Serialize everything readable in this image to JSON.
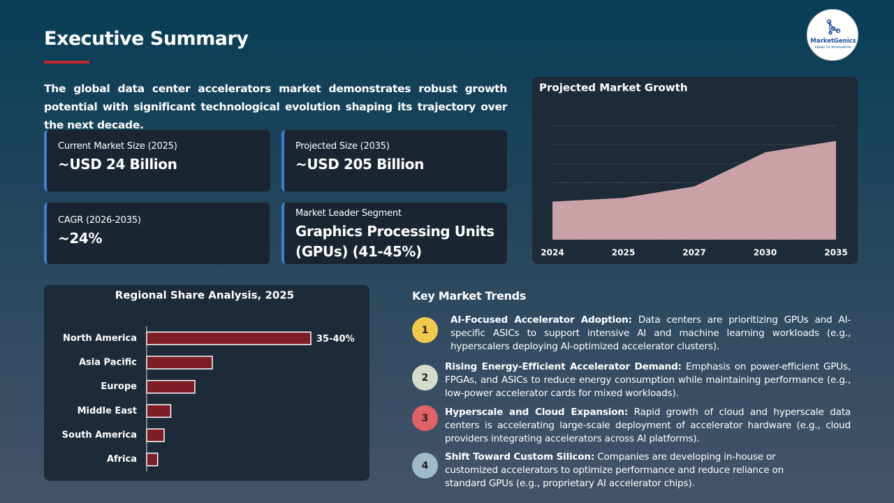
{
  "header": {
    "title": "Executive Summary",
    "logo_name": "MarketGenics",
    "logo_tagline": "Ideas to Innovation"
  },
  "intro": "The global data center accelerators market demonstrates robust growth potential with significant technological evolution shaping its trajectory over the next decade.",
  "metrics": [
    {
      "label": "Current Market Size (2025)",
      "value": "~USD 24 Billion"
    },
    {
      "label": "Projected Size (2035)",
      "value": "~USD 205 Billion"
    },
    {
      "label": "CAGR (2026-2035)",
      "value": "~24%"
    },
    {
      "label": "Market Leader Segment",
      "value": "Graphics Processing Units (GPUs) (41-45%)"
    }
  ],
  "chart_data": [
    {
      "type": "area",
      "title": "Projected Market Growth",
      "categories": [
        "2024",
        "2025",
        "2027",
        "2030",
        "2035"
      ],
      "values": [
        2.0,
        2.2,
        2.8,
        4.6,
        5.2
      ],
      "color": "#c9a1a6",
      "ylim": [
        0,
        6
      ],
      "yticks": [
        0,
        1,
        2,
        3,
        4,
        5,
        6
      ],
      "grid": true
    },
    {
      "type": "bar",
      "orientation": "horizontal",
      "title": "Regional Share Analysis, 2025",
      "categories": [
        "North America",
        "Asia Pacific",
        "Europe",
        "Middle East",
        "South America",
        "Africa"
      ],
      "values": [
        37.5,
        15,
        11,
        5.5,
        4,
        2.5
      ],
      "value_labels": [
        "35-40%",
        null,
        null,
        null,
        null,
        null
      ],
      "color": "#7d1d26",
      "xlim": [
        0,
        45
      ]
    }
  ],
  "trends": {
    "title": "Key Market Trends",
    "items": [
      {
        "number": "1",
        "heading": "AI-Focused Accelerator Adoption:",
        "text": "Data centers are prioritizing GPUs and AI-specific ASICs to support intensive AI and machine learning workloads (e.g., hyperscalers deploying AI-optimized accelerator clusters)."
      },
      {
        "number": "2",
        "heading": "Rising Energy-Efficient Accelerator Demand:",
        "text": "Emphasis on power-efficient GPUs, FPGAs, and ASICs to reduce energy consumption while maintaining performance (e.g., low-power accelerator cards for mixed workloads)."
      },
      {
        "number": "3",
        "heading": "Hyperscale and Cloud Expansion:",
        "text": "Rapid growth of cloud and hyperscale data centers is accelerating large-scale deployment of accelerator hardware (e.g., cloud providers integrating accelerators across AI platforms)."
      },
      {
        "number": "4",
        "heading": "Shift Toward Custom Silicon:",
        "text": "Companies are developing in-house or customized accelerators to optimize performance and reduce reliance on standard GPUs (e.g., proprietary AI accelerator chips)."
      }
    ]
  }
}
